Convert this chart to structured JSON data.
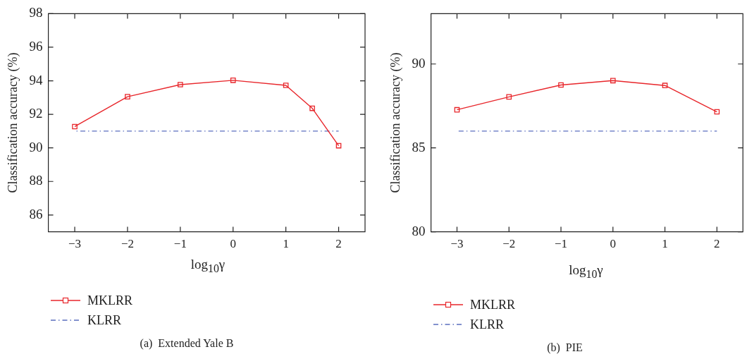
{
  "chart_data": [
    {
      "type": "line",
      "title": "(a)  Extended Yale B",
      "xlabel": "log$_{10}$γ",
      "ylabel": "Classification accuracy (%)",
      "xlim": [
        -3.5,
        2.5
      ],
      "xticks": [
        -3,
        -2,
        -1,
        0,
        1,
        2
      ],
      "ylim": [
        85,
        98
      ],
      "yticks": [
        86,
        88,
        90,
        92,
        94,
        96,
        98
      ],
      "grid": false,
      "legend": "bottom",
      "series": [
        {
          "name": "MKLRR",
          "color": "#e8262b",
          "marker": "square",
          "line_style": "solid",
          "x": [
            -3,
            -2,
            -1,
            0,
            1,
            1.5,
            2
          ],
          "values": [
            91.27,
            93.05,
            93.77,
            94.03,
            93.73,
            92.36,
            90.13
          ]
        },
        {
          "name": "KLRR",
          "color": "#5b6fbf",
          "marker": "none",
          "line_style": "dashed",
          "x": [
            -3,
            2
          ],
          "values": [
            91.0,
            91.0
          ]
        }
      ]
    },
    {
      "type": "line",
      "title": "(b)  PIE",
      "xlabel": "log$_{10}$γ",
      "ylabel": "Classification accuracy (%)",
      "xlim": [
        -3.5,
        2.5
      ],
      "xticks": [
        -3,
        -2,
        -1,
        0,
        1,
        2
      ],
      "ylim": [
        80,
        93
      ],
      "yticks": [
        80,
        85,
        90
      ],
      "grid": false,
      "legend": "bottom",
      "series": [
        {
          "name": "MKLRR",
          "color": "#e8262b",
          "marker": "square",
          "line_style": "solid",
          "x": [
            -3,
            -2,
            -1,
            0,
            1,
            2
          ],
          "values": [
            87.27,
            88.04,
            88.75,
            89.01,
            88.72,
            87.15
          ]
        },
        {
          "name": "KLRR",
          "color": "#5b6fbf",
          "marker": "none",
          "line_style": "dashed",
          "x": [
            -3,
            2
          ],
          "values": [
            86.0,
            86.0
          ]
        }
      ]
    }
  ]
}
